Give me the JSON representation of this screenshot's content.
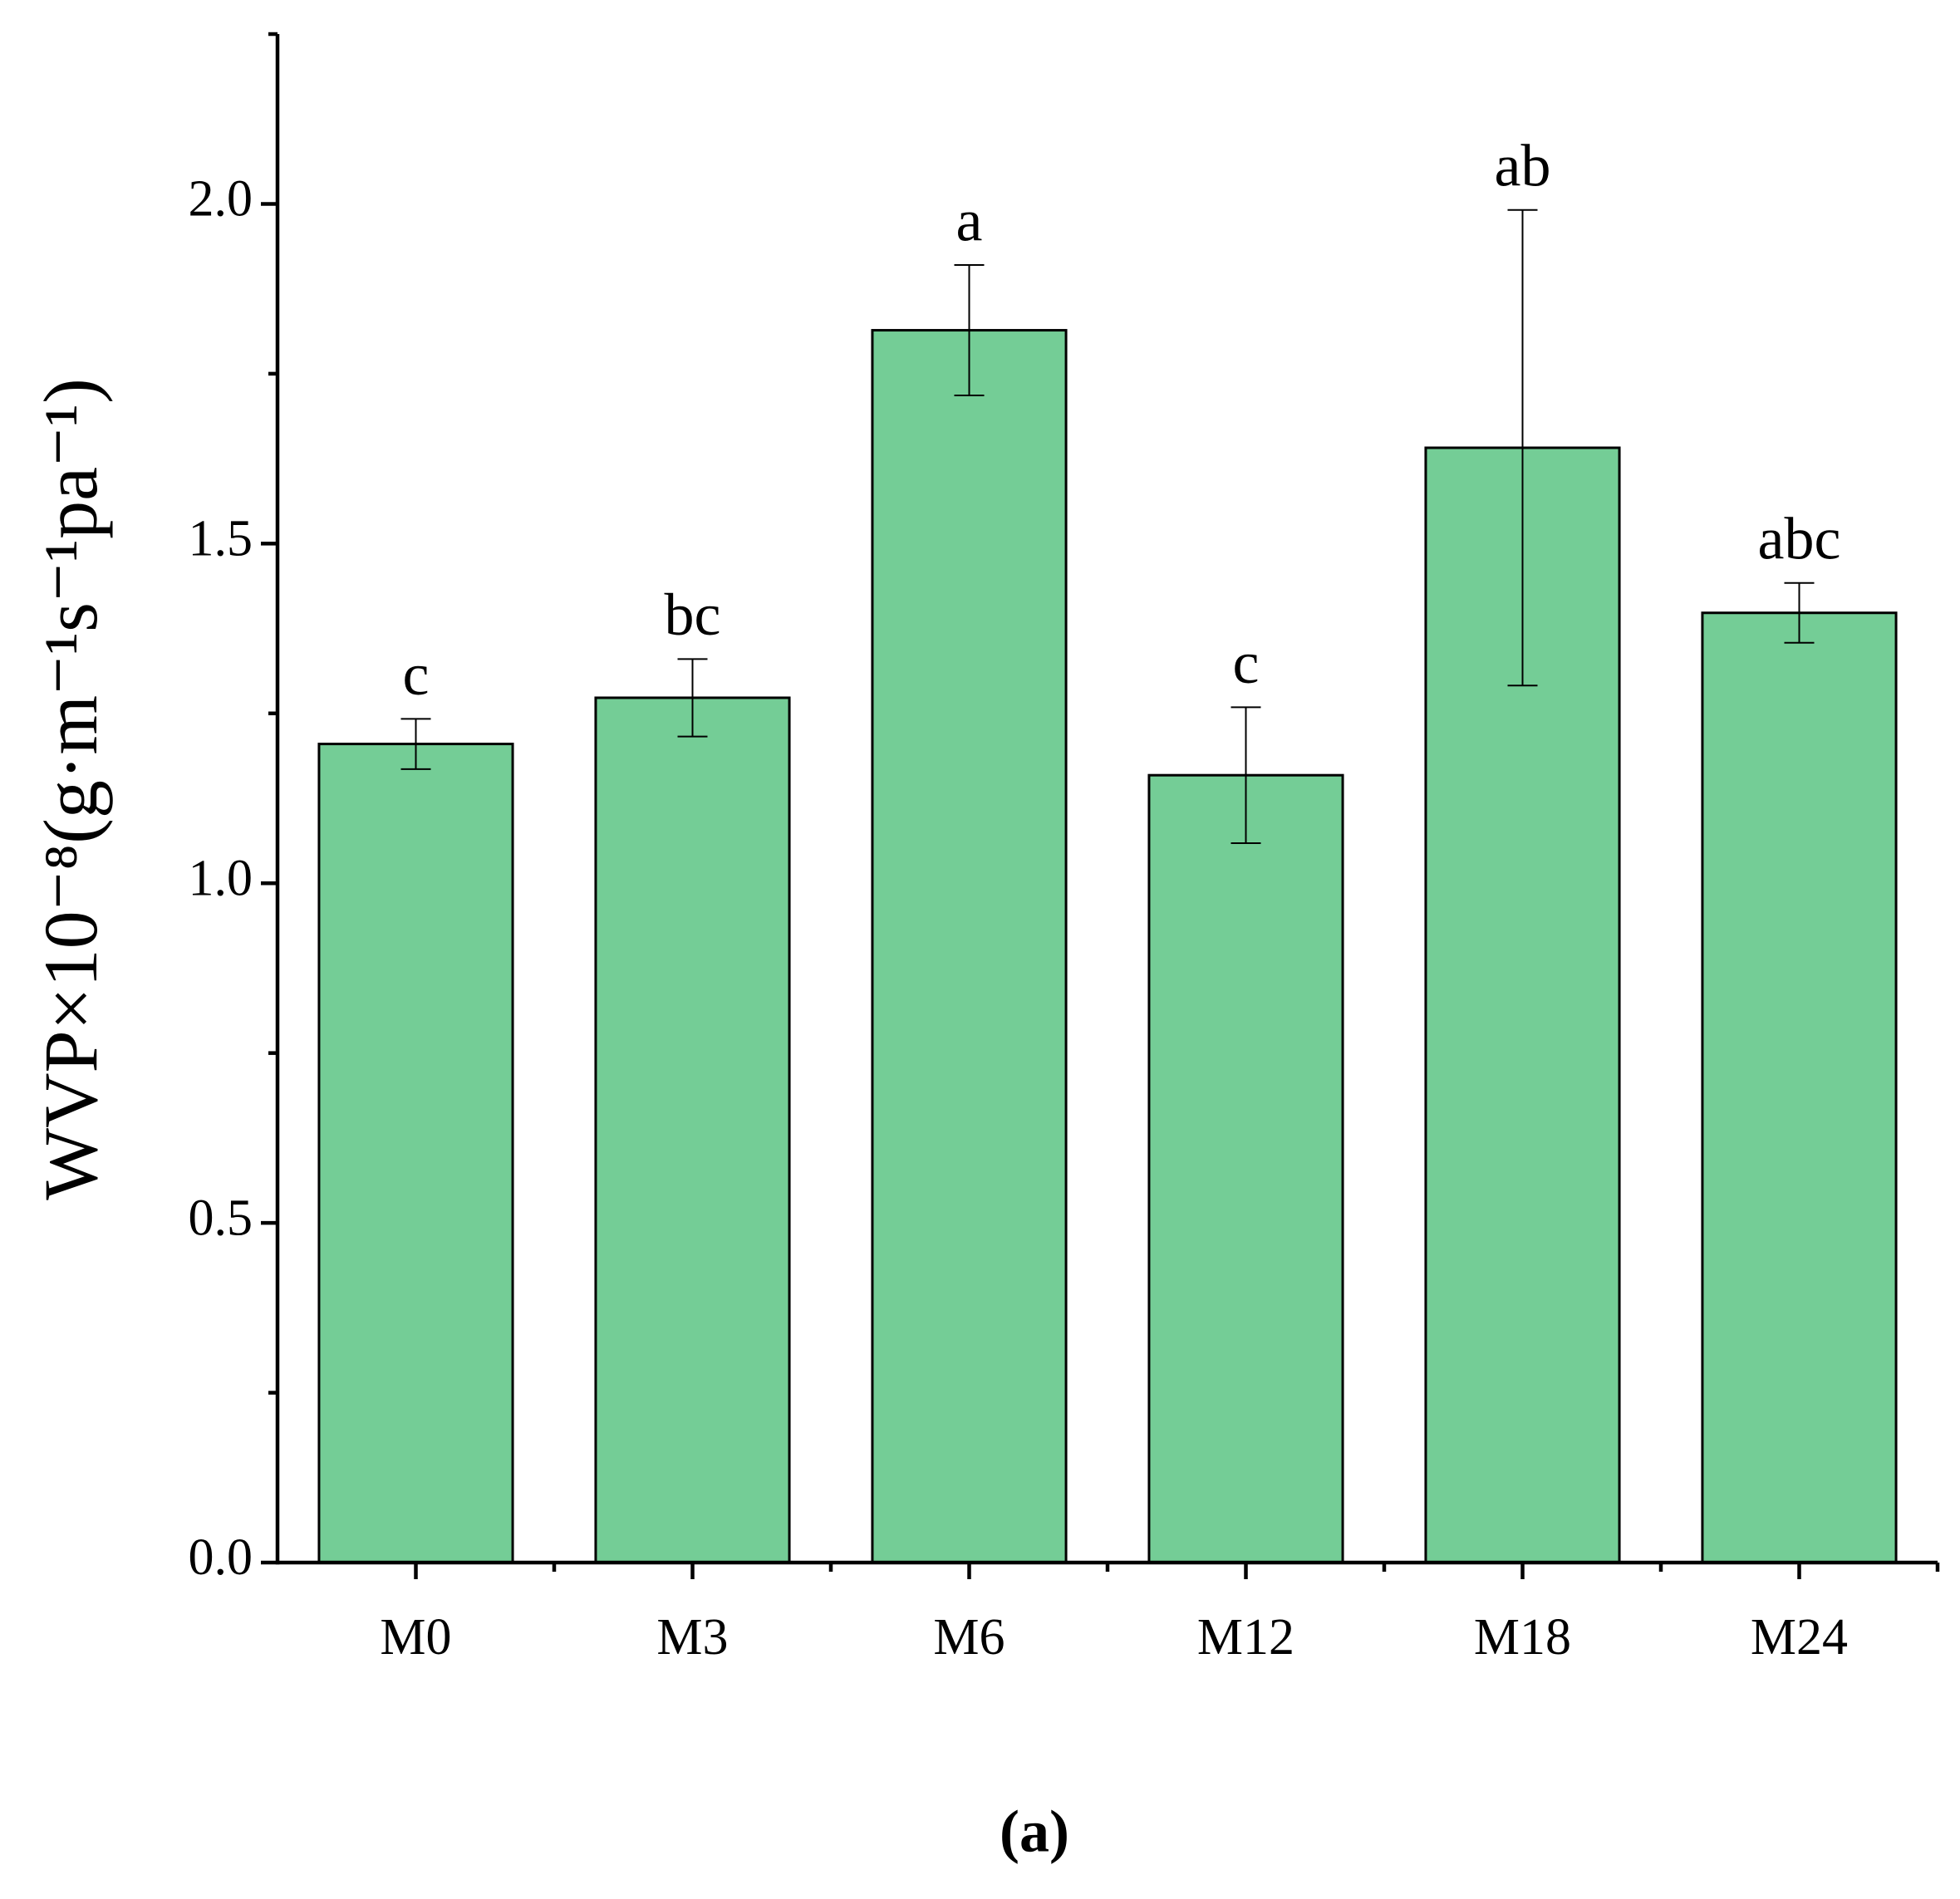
{
  "chart_data": {
    "type": "bar",
    "ylabel": "WVP×10⁻⁸(g·m⁻¹s⁻¹pa⁻¹)",
    "caption": "(a)",
    "categories": [
      "M0",
      "M3",
      "M6",
      "M12",
      "M18",
      "M24"
    ],
    "values": [
      1.205,
      1.273,
      1.814,
      1.159,
      1.641,
      1.398
    ],
    "errors": [
      0.037,
      0.057,
      0.096,
      0.1,
      0.35,
      0.044
    ],
    "annotations": [
      "c",
      "bc",
      "a",
      "c",
      "ab",
      "abc"
    ],
    "color": "#74cd96",
    "ylim": [
      0,
      2.25
    ],
    "yticks": [
      {
        "value": 0,
        "label": "0.0"
      },
      0.5,
      {
        "value": 1,
        "label": "1.0"
      },
      1.5,
      {
        "value": 2,
        "label": "2.0"
      }
    ],
    "yticks_minor": [
      0.25,
      0.75,
      1.25,
      1.75,
      2.25
    ]
  }
}
